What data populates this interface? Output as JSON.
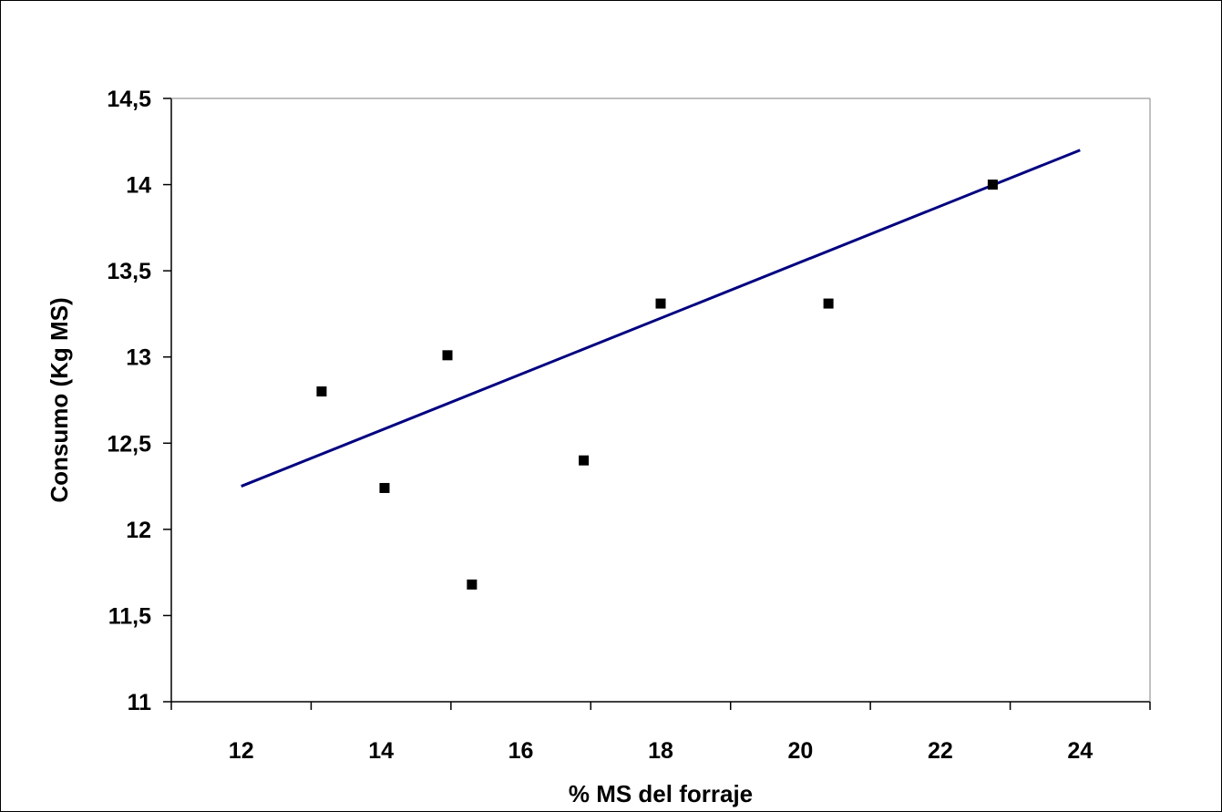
{
  "chart_data": {
    "type": "scatter",
    "xlabel": "% MS del forraje",
    "ylabel": "Consumo (Kg MS)",
    "title": "",
    "xlim": [
      11,
      25
    ],
    "ylim": [
      11,
      14.5
    ],
    "x_ticks": [
      {
        "value": 12,
        "label": "12"
      },
      {
        "value": 14,
        "label": "14"
      },
      {
        "value": 16,
        "label": "16"
      },
      {
        "value": 18,
        "label": "18"
      },
      {
        "value": 20,
        "label": "20"
      },
      {
        "value": 22,
        "label": "22"
      },
      {
        "value": 24,
        "label": "24"
      }
    ],
    "x_tick_marks": [
      11,
      13,
      15,
      17,
      19,
      21,
      23,
      25
    ],
    "y_ticks": [
      {
        "value": 11,
        "label": "11"
      },
      {
        "value": 11.5,
        "label": "11,5"
      },
      {
        "value": 12,
        "label": "12"
      },
      {
        "value": 12.5,
        "label": "12,5"
      },
      {
        "value": 13,
        "label": "13"
      },
      {
        "value": 13.5,
        "label": "13,5"
      },
      {
        "value": 14,
        "label": "14"
      },
      {
        "value": 14.5,
        "label": "14,5"
      }
    ],
    "series": [
      {
        "x": [
          13.15,
          14.05,
          14.95,
          15.3,
          16.9,
          18.0,
          20.4,
          22.75
        ],
        "y": [
          12.8,
          12.24,
          13.01,
          11.68,
          12.4,
          13.31,
          13.31,
          14.0
        ]
      }
    ],
    "trendline": {
      "x": [
        12,
        24
      ],
      "y": [
        12.25,
        14.2
      ]
    },
    "colors": {
      "markers": "#000000",
      "trendline": "#000080",
      "axes": "#000000"
    },
    "grid": false,
    "legend": "none"
  }
}
